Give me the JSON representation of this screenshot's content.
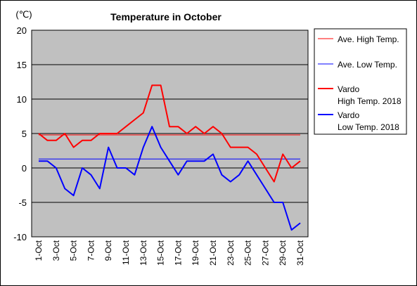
{
  "chart_data": {
    "type": "line",
    "title": "Temperature in October",
    "unit_label": "(℃)",
    "ylim": [
      -10,
      20
    ],
    "y_ticks": [
      20,
      15,
      10,
      5,
      0,
      -5,
      -10
    ],
    "grid": "horizontal",
    "plot_background": "#c0c0c0",
    "x_tick_labels": [
      "1-Oct",
      "3-Oct",
      "5-Oct",
      "7-Oct",
      "9-Oct",
      "11-Oct",
      "13-Oct",
      "15-Oct",
      "17-Oct",
      "19-Oct",
      "21-Oct",
      "23-Oct",
      "25-Oct",
      "27-Oct",
      "29-Oct",
      "31-Oct"
    ],
    "x": [
      1,
      2,
      3,
      4,
      5,
      6,
      7,
      8,
      9,
      10,
      11,
      12,
      13,
      14,
      15,
      16,
      17,
      18,
      19,
      20,
      21,
      22,
      23,
      24,
      25,
      26,
      27,
      28,
      29,
      30,
      31
    ],
    "legend_position": "right",
    "series": [
      {
        "name": "Ave. High Temp.",
        "color": "#ff0000",
        "width": 1,
        "values": [
          4.8,
          4.8,
          4.8,
          4.8,
          4.8,
          4.8,
          4.8,
          4.8,
          4.8,
          4.8,
          4.8,
          4.8,
          4.8,
          4.8,
          4.8,
          4.8,
          4.8,
          4.8,
          4.8,
          4.8,
          4.8,
          4.8,
          4.8,
          4.8,
          4.8,
          4.8,
          4.8,
          4.8,
          4.8,
          4.8,
          4.8
        ]
      },
      {
        "name": "Ave. Low Temp.",
        "color": "#0000ff",
        "width": 1,
        "values": [
          1.3,
          1.3,
          1.3,
          1.3,
          1.3,
          1.3,
          1.3,
          1.3,
          1.3,
          1.3,
          1.3,
          1.3,
          1.3,
          1.3,
          1.3,
          1.3,
          1.3,
          1.3,
          1.3,
          1.3,
          1.3,
          1.3,
          1.3,
          1.3,
          1.3,
          1.3,
          1.3,
          1.3,
          1.3,
          1.3,
          1.3
        ]
      },
      {
        "name_lines": [
          "Vardo",
          "High Temp. 2018"
        ],
        "color": "#ff0000",
        "width": 2,
        "values": [
          5,
          4,
          4,
          5,
          3,
          4,
          4,
          5,
          5,
          5,
          6,
          7,
          8,
          12,
          12,
          6,
          6,
          5,
          6,
          5,
          6,
          5,
          3,
          3,
          3,
          2,
          0,
          -2,
          2,
          0,
          1
        ]
      },
      {
        "name_lines": [
          "Vardo",
          "Low Temp. 2018"
        ],
        "color": "#0000ff",
        "width": 2,
        "values": [
          1,
          1,
          0,
          -3,
          -4,
          0,
          -1,
          -3,
          3,
          0,
          0,
          -1,
          3,
          6,
          3,
          1,
          -1,
          1,
          1,
          1,
          2,
          -1,
          -2,
          -1,
          1,
          -1,
          -3,
          -5,
          -5,
          -9,
          -8
        ]
      }
    ]
  }
}
